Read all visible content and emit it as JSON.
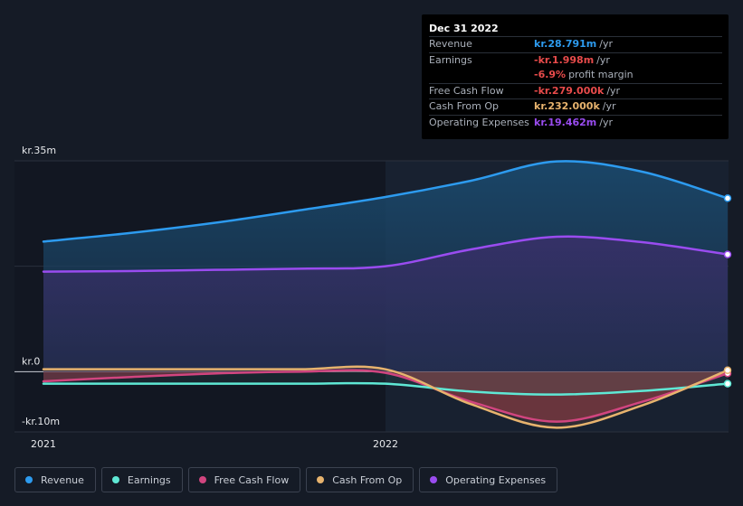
{
  "chart_data": {
    "type": "area",
    "x": [
      "2021-01",
      "2021-04",
      "2021-07",
      "2021-10",
      "2022-01",
      "2022-04",
      "2022-07",
      "2022-10",
      "2022-12"
    ],
    "x_tick_labels": [
      "2021",
      "2022"
    ],
    "y_tick_labels": [
      "kr.35m",
      "kr.0",
      "-kr.10m"
    ],
    "ylim": [
      -10,
      35
    ],
    "series": [
      {
        "name": "Revenue",
        "color": "#2d9bef",
        "values": [
          21.6,
          23.0,
          24.7,
          26.8,
          29.0,
          31.7,
          34.9,
          33.2,
          28.791
        ]
      },
      {
        "name": "Earnings",
        "color": "#5fe8d5",
        "values": [
          -2.0,
          -2.0,
          -2.0,
          -2.0,
          -2.0,
          -3.3,
          -3.8,
          -3.2,
          -1.998
        ]
      },
      {
        "name": "Free Cash Flow",
        "color": "#d1457f",
        "values": [
          -1.6,
          -0.9,
          -0.3,
          0.0,
          -0.2,
          -5.0,
          -8.3,
          -5.0,
          -0.279
        ]
      },
      {
        "name": "Cash From Op",
        "color": "#e7b36e",
        "values": [
          0.4,
          0.4,
          0.4,
          0.4,
          0.4,
          -5.4,
          -9.3,
          -5.6,
          0.232
        ]
      },
      {
        "name": "Operating Expenses",
        "color": "#9a4cf0",
        "values": [
          16.6,
          16.7,
          16.9,
          17.1,
          17.5,
          20.3,
          22.4,
          21.5,
          19.462
        ]
      }
    ],
    "legend_position": "bottom",
    "grid": true
  },
  "tooltip": {
    "date": "Dec 31 2022",
    "rows": [
      {
        "label": "Revenue",
        "value": "kr.28.791m",
        "unit": "/yr",
        "color": "#2d9bef"
      },
      {
        "label": "Earnings",
        "value": "-kr.1.998m",
        "unit": "/yr",
        "color": "#e84b4b"
      },
      {
        "label": "",
        "value": "-6.9%",
        "unit": "profit margin",
        "color": "#e84b4b"
      },
      {
        "label": "Free Cash Flow",
        "value": "-kr.279.000k",
        "unit": "/yr",
        "color": "#e84b4b"
      },
      {
        "label": "Cash From Op",
        "value": "kr.232.000k",
        "unit": "/yr",
        "color": "#e7b36e"
      },
      {
        "label": "Operating Expenses",
        "value": "kr.19.462m",
        "unit": "/yr",
        "color": "#9a4cf0"
      }
    ]
  },
  "legend": [
    {
      "label": "Revenue",
      "color": "#2d9bef"
    },
    {
      "label": "Earnings",
      "color": "#5fe8d5"
    },
    {
      "label": "Free Cash Flow",
      "color": "#d1457f"
    },
    {
      "label": "Cash From Op",
      "color": "#e7b36e"
    },
    {
      "label": "Operating Expenses",
      "color": "#9a4cf0"
    }
  ]
}
